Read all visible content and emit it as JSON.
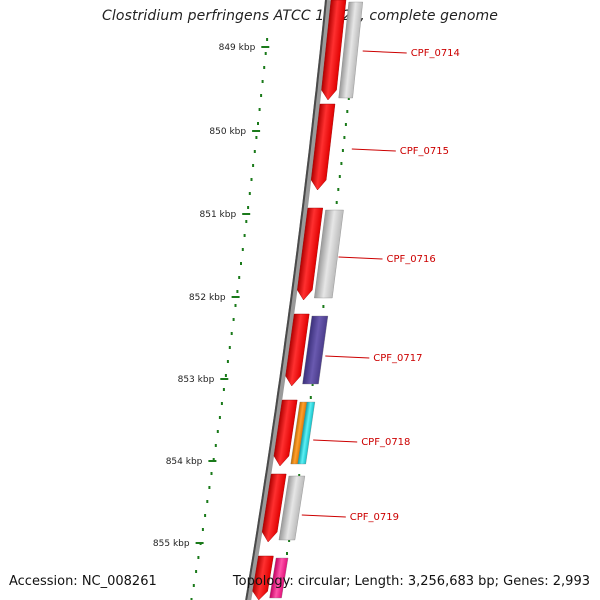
{
  "title": "Clostridium perfringens ATCC 13124, complete genome",
  "accession_label": "Accession: NC_008261",
  "summary": "Topology: circular; Length: 3,256,683 bp; Genes: 2,993",
  "scale": {
    "ticks": [
      "849 kbp",
      "850 kbp",
      "851 kbp",
      "852 kbp",
      "853 kbp",
      "854 kbp",
      "855 kbp"
    ]
  },
  "genes": [
    {
      "label": "CPF_0714",
      "color": "#cc0000"
    },
    {
      "label": "CPF_0715",
      "color": "#cc0000"
    },
    {
      "label": "CPF_0716",
      "color": "#cc0000"
    },
    {
      "label": "CPF_0717",
      "color": "#cc0000"
    },
    {
      "label": "CPF_0718",
      "color": "#cc0000"
    },
    {
      "label": "CPF_0719",
      "color": "#cc0000"
    }
  ],
  "colors": {
    "gene_arrow": "#ff1a1a",
    "tick": "#1a7a1a",
    "backbone": "#7a7a7a",
    "label": "#cc0000",
    "cog_grey": "#c2c2c2",
    "cog_purple": "#5a4a9a",
    "cog_orange": "#f08a10",
    "cog_cyan": "#18c8d0",
    "cog_pink": "#ff1a8a"
  }
}
